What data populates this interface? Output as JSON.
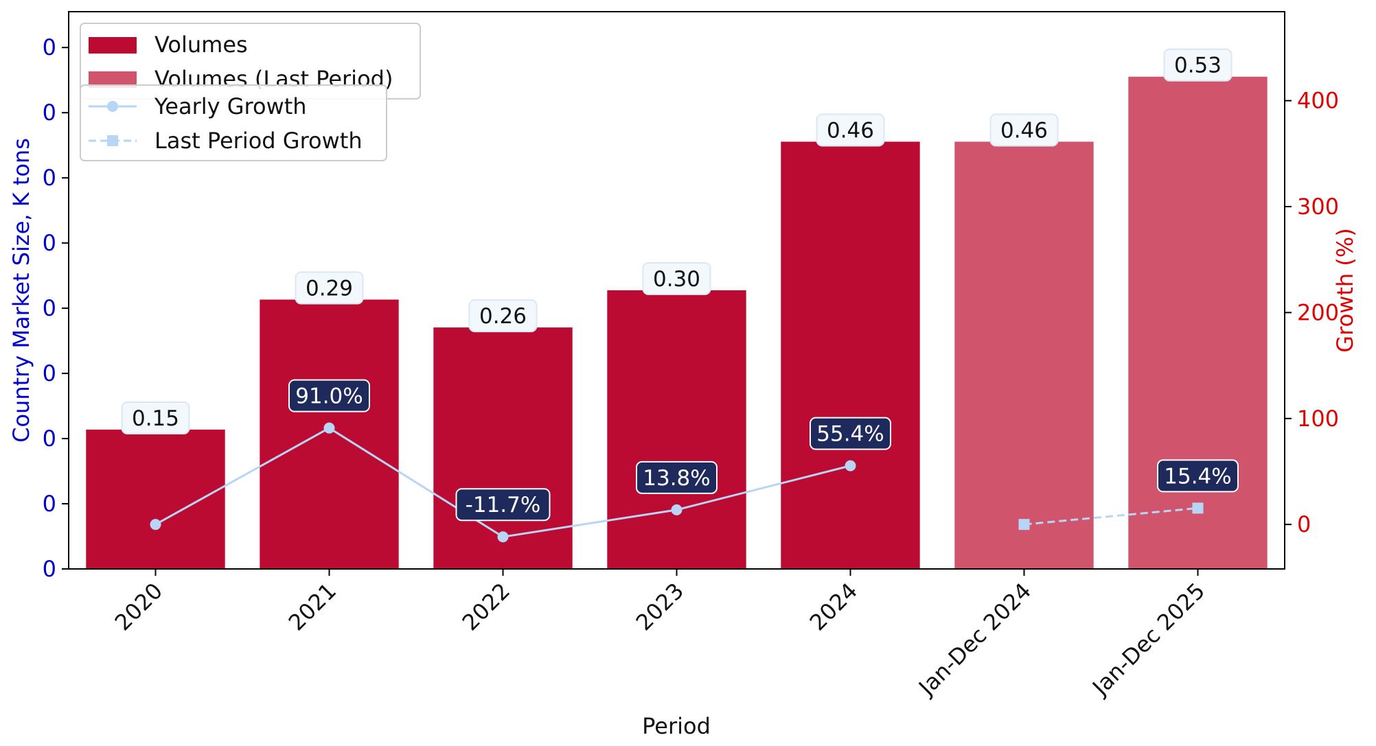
{
  "chart_data": {
    "type": "bar",
    "categories": [
      "2020",
      "2021",
      "2022",
      "2023",
      "2024",
      "Jan-Dec 2024",
      "Jan-Dec 2025"
    ],
    "xlabel": "Period",
    "ylabel_left": "Country Market Size, K tons",
    "ylabel_right": "Growth (%)",
    "y_left_tick_labels": [
      "0",
      "0",
      "0",
      "0",
      "0",
      "0",
      "0",
      "0",
      "0"
    ],
    "y_left_lim": [
      0,
      0.6
    ],
    "y_right_ticks": [
      0,
      100,
      200,
      300,
      400
    ],
    "y_right_lim": [
      -42,
      484
    ],
    "grid": false,
    "series": [
      {
        "name": "Volumes",
        "kind": "bar",
        "color": "#bc0b32",
        "values": [
          0.15,
          0.29,
          0.26,
          0.3,
          0.46,
          null,
          null
        ],
        "labels": [
          "0.15",
          "0.29",
          "0.26",
          "0.30",
          "0.46",
          "",
          ""
        ]
      },
      {
        "name": "Volumes (Last Period)",
        "kind": "bar",
        "color": "#d0546c",
        "values": [
          null,
          null,
          null,
          null,
          null,
          0.46,
          0.53
        ],
        "labels": [
          "",
          "",
          "",
          "",
          "",
          "0.46",
          "0.53"
        ]
      },
      {
        "name": "Yearly Growth",
        "kind": "line",
        "style": "solid",
        "marker": "circle",
        "color": "#b7d5f5",
        "values": [
          0,
          91.0,
          -11.7,
          13.8,
          55.4,
          null,
          null
        ],
        "labels": [
          "",
          "91.0%",
          "-11.7%",
          "13.8%",
          "55.4%",
          "",
          ""
        ]
      },
      {
        "name": "Last Period Growth",
        "kind": "line",
        "style": "dashed",
        "marker": "square",
        "color": "#b7d5f5",
        "values": [
          null,
          null,
          null,
          null,
          null,
          0,
          15.4
        ],
        "labels": [
          "",
          "",
          "",
          "",
          "",
          "",
          "15.4%"
        ]
      }
    ],
    "legend_placement": "top-left",
    "colors": {
      "left_axis": "#0000cc",
      "right_axis": "#e00000",
      "growth_label_bg": "#1f2a5c",
      "value_label_bg": "#f2f8fc"
    }
  }
}
